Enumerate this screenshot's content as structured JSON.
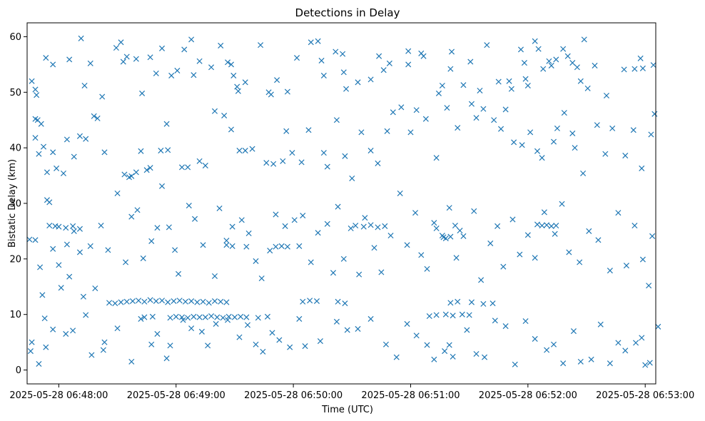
{
  "chart_data": {
    "type": "scatter",
    "title": "Detections in Delay",
    "xlabel": "Time (UTC)",
    "ylabel": "Bistatic Delay (km)",
    "xlim": [
      -0.27,
      5.09
    ],
    "ylim": [
      -2.5,
      62.5
    ],
    "marker": "x",
    "color": "#1f77b4",
    "grid": false,
    "x_unit": "minutes after 2025-05-28 06:48:00",
    "xticks": [
      {
        "value": 0,
        "label": "2025-05-28 06:48:00"
      },
      {
        "value": 1,
        "label": "2025-05-28 06:49:00"
      },
      {
        "value": 2,
        "label": "2025-05-28 06:50:00"
      },
      {
        "value": 3,
        "label": "2025-05-28 06:51:00"
      },
      {
        "value": 4,
        "label": "2025-05-28 06:52:00"
      },
      {
        "value": 5,
        "label": "2025-05-28 06:53:00"
      }
    ],
    "yticks": [
      {
        "value": 0,
        "label": "0"
      },
      {
        "value": 10,
        "label": "10"
      },
      {
        "value": 20,
        "label": "20"
      },
      {
        "value": 30,
        "label": "30"
      },
      {
        "value": 40,
        "label": "40"
      },
      {
        "value": 50,
        "label": "50"
      },
      {
        "value": 60,
        "label": "60"
      }
    ],
    "points": [
      [
        -0.23,
        52.0
      ],
      [
        -0.2,
        50.5
      ],
      [
        -0.19,
        49.5
      ],
      [
        -0.2,
        45.2
      ],
      [
        -0.18,
        45.0
      ],
      [
        -0.15,
        44.3
      ],
      [
        -0.11,
        56.2
      ],
      [
        -0.05,
        55.0
      ],
      [
        0.09,
        55.9
      ],
      [
        0.19,
        59.7
      ],
      [
        0.22,
        51.2
      ],
      [
        0.27,
        55.2
      ],
      [
        0.37,
        49.2
      ],
      [
        0.49,
        58.0
      ],
      [
        0.53,
        59.0
      ],
      [
        0.55,
        55.5
      ],
      [
        0.58,
        56.4
      ],
      [
        0.66,
        56.0
      ],
      [
        0.71,
        49.8
      ],
      [
        0.78,
        56.3
      ],
      [
        0.83,
        53.4
      ],
      [
        0.88,
        57.9
      ],
      [
        0.96,
        53.0
      ],
      [
        1.01,
        53.9
      ],
      [
        1.07,
        57.7
      ],
      [
        1.13,
        59.5
      ],
      [
        1.15,
        53.1
      ],
      [
        1.2,
        55.6
      ],
      [
        1.3,
        54.5
      ],
      [
        1.38,
        58.4
      ],
      [
        1.44,
        55.4
      ],
      [
        1.47,
        55.0
      ],
      [
        1.49,
        53.0
      ],
      [
        1.52,
        51.0
      ],
      [
        1.53,
        50.2
      ],
      [
        1.59,
        51.8
      ],
      [
        1.72,
        58.5
      ],
      [
        1.79,
        50.0
      ],
      [
        1.81,
        49.6
      ],
      [
        1.86,
        52.2
      ],
      [
        1.95,
        50.1
      ],
      [
        2.03,
        56.2
      ],
      [
        2.15,
        59.0
      ],
      [
        2.21,
        59.2
      ],
      [
        2.24,
        55.7
      ],
      [
        2.26,
        53.0
      ],
      [
        2.36,
        57.3
      ],
      [
        2.42,
        56.9
      ],
      [
        2.43,
        53.6
      ],
      [
        2.45,
        50.6
      ],
      [
        2.55,
        51.8
      ],
      [
        2.66,
        52.3
      ],
      [
        2.73,
        56.5
      ],
      [
        2.77,
        54.0
      ],
      [
        2.82,
        55.2
      ],
      [
        2.98,
        57.4
      ],
      [
        2.98,
        55.0
      ],
      [
        3.09,
        57.0
      ],
      [
        3.11,
        56.5
      ],
      [
        3.24,
        49.8
      ],
      [
        3.27,
        51.2
      ],
      [
        3.35,
        57.3
      ],
      [
        3.34,
        54.2
      ],
      [
        3.45,
        51.3
      ],
      [
        3.51,
        55.5
      ],
      [
        3.59,
        50.3
      ],
      [
        3.65,
        58.5
      ],
      [
        3.75,
        51.9
      ],
      [
        3.84,
        52.0
      ],
      [
        3.86,
        50.6
      ],
      [
        3.94,
        57.7
      ],
      [
        3.97,
        55.3
      ],
      [
        3.98,
        52.4
      ],
      [
        4.0,
        51.2
      ],
      [
        4.06,
        59.2
      ],
      [
        4.09,
        57.8
      ],
      [
        4.13,
        54.2
      ],
      [
        4.18,
        55.6
      ],
      [
        4.2,
        54.8
      ],
      [
        4.24,
        55.9
      ],
      [
        4.3,
        57.8
      ],
      [
        4.34,
        56.5
      ],
      [
        4.38,
        55.3
      ],
      [
        4.42,
        54.5
      ],
      [
        4.45,
        52.0
      ],
      [
        4.48,
        59.5
      ],
      [
        4.51,
        50.7
      ],
      [
        4.57,
        54.8
      ],
      [
        4.67,
        49.4
      ],
      [
        4.82,
        54.1
      ],
      [
        4.91,
        54.2
      ],
      [
        4.96,
        56.1
      ],
      [
        4.98,
        54.3
      ],
      [
        5.07,
        54.9
      ],
      [
        -0.2,
        41.8
      ],
      [
        -0.17,
        38.9
      ],
      [
        -0.13,
        40.2
      ],
      [
        -0.1,
        35.6
      ],
      [
        -0.1,
        30.6
      ],
      [
        -0.08,
        30.2
      ],
      [
        -0.05,
        39.2
      ],
      [
        -0.02,
        36.3
      ],
      [
        0.04,
        35.4
      ],
      [
        0.07,
        41.5
      ],
      [
        0.13,
        38.4
      ],
      [
        0.18,
        42.1
      ],
      [
        0.23,
        41.6
      ],
      [
        0.3,
        45.7
      ],
      [
        0.33,
        45.3
      ],
      [
        0.39,
        39.2
      ],
      [
        0.56,
        35.2
      ],
      [
        0.6,
        34.7
      ],
      [
        0.62,
        34.9
      ],
      [
        0.66,
        35.6
      ],
      [
        0.7,
        39.4
      ],
      [
        0.75,
        36.0
      ],
      [
        0.78,
        36.4
      ],
      [
        0.87,
        39.5
      ],
      [
        0.92,
        44.3
      ],
      [
        0.93,
        39.6
      ],
      [
        1.05,
        36.5
      ],
      [
        1.1,
        36.5
      ],
      [
        1.2,
        37.6
      ],
      [
        1.25,
        36.8
      ],
      [
        1.33,
        46.6
      ],
      [
        1.41,
        45.8
      ],
      [
        1.47,
        43.3
      ],
      [
        1.54,
        39.5
      ],
      [
        1.59,
        39.5
      ],
      [
        1.65,
        39.8
      ],
      [
        1.77,
        37.3
      ],
      [
        1.83,
        37.1
      ],
      [
        1.91,
        37.6
      ],
      [
        1.94,
        43.0
      ],
      [
        1.99,
        39.1
      ],
      [
        2.07,
        37.4
      ],
      [
        2.13,
        43.2
      ],
      [
        2.26,
        39.1
      ],
      [
        2.29,
        36.6
      ],
      [
        2.37,
        45.0
      ],
      [
        2.44,
        38.5
      ],
      [
        2.5,
        34.5
      ],
      [
        2.58,
        42.8
      ],
      [
        2.66,
        39.5
      ],
      [
        2.72,
        37.2
      ],
      [
        2.8,
        43.0
      ],
      [
        2.85,
        46.4
      ],
      [
        2.92,
        47.3
      ],
      [
        3.0,
        42.8
      ],
      [
        3.05,
        46.8
      ],
      [
        3.13,
        45.2
      ],
      [
        3.22,
        38.2
      ],
      [
        3.31,
        47.2
      ],
      [
        3.4,
        43.6
      ],
      [
        3.52,
        47.9
      ],
      [
        3.56,
        45.4
      ],
      [
        3.62,
        47.0
      ],
      [
        3.71,
        45.0
      ],
      [
        3.77,
        43.4
      ],
      [
        3.81,
        46.9
      ],
      [
        3.88,
        41.0
      ],
      [
        3.95,
        40.5
      ],
      [
        4.02,
        42.8
      ],
      [
        4.08,
        39.4
      ],
      [
        4.12,
        38.2
      ],
      [
        4.22,
        41.1
      ],
      [
        4.25,
        43.5
      ],
      [
        4.31,
        46.3
      ],
      [
        4.38,
        42.6
      ],
      [
        4.4,
        40.0
      ],
      [
        4.47,
        35.4
      ],
      [
        4.59,
        44.1
      ],
      [
        4.66,
        38.9
      ],
      [
        4.72,
        43.5
      ],
      [
        4.83,
        38.6
      ],
      [
        4.9,
        43.2
      ],
      [
        4.97,
        36.3
      ],
      [
        5.05,
        42.4
      ],
      [
        5.08,
        46.1
      ],
      [
        -0.25,
        23.5
      ],
      [
        -0.2,
        23.4
      ],
      [
        -0.16,
        18.5
      ],
      [
        -0.14,
        13.5
      ],
      [
        -0.12,
        9.3
      ],
      [
        -0.08,
        26.0
      ],
      [
        -0.05,
        21.8
      ],
      [
        -0.03,
        25.9
      ],
      [
        0.0,
        18.9
      ],
      [
        0.02,
        14.8
      ],
      [
        0.07,
        22.6
      ],
      [
        0.09,
        16.8
      ],
      [
        0.13,
        25.0
      ],
      [
        0.18,
        21.2
      ],
      [
        0.21,
        13.2
      ],
      [
        0.27,
        22.3
      ],
      [
        0.31,
        14.7
      ],
      [
        0.36,
        26.0
      ],
      [
        0.42,
        21.6
      ],
      [
        0.5,
        31.8
      ],
      [
        0.57,
        19.4
      ],
      [
        0.62,
        27.6
      ],
      [
        0.67,
        28.8
      ],
      [
        0.72,
        20.1
      ],
      [
        0.79,
        23.2
      ],
      [
        0.84,
        25.6
      ],
      [
        0.88,
        33.1
      ],
      [
        0.94,
        25.7
      ],
      [
        0.99,
        21.6
      ],
      [
        1.02,
        17.3
      ],
      [
        1.11,
        29.6
      ],
      [
        1.16,
        27.2
      ],
      [
        1.23,
        22.5
      ],
      [
        1.33,
        16.9
      ],
      [
        1.37,
        29.1
      ],
      [
        1.43,
        23.3
      ],
      [
        1.48,
        25.8
      ],
      [
        1.56,
        27.0
      ],
      [
        1.62,
        24.6
      ],
      [
        1.68,
        19.6
      ],
      [
        1.73,
        16.5
      ],
      [
        1.8,
        21.5
      ],
      [
        1.85,
        28.0
      ],
      [
        1.93,
        25.9
      ],
      [
        2.01,
        27.0
      ],
      [
        2.08,
        27.8
      ],
      [
        2.15,
        19.4
      ],
      [
        2.21,
        24.7
      ],
      [
        2.29,
        26.3
      ],
      [
        2.34,
        17.5
      ],
      [
        2.38,
        29.4
      ],
      [
        2.43,
        20.0
      ],
      [
        2.49,
        25.5
      ],
      [
        2.56,
        17.2
      ],
      [
        2.61,
        27.4
      ],
      [
        2.69,
        22.0
      ],
      [
        2.75,
        17.6
      ],
      [
        2.83,
        24.2
      ],
      [
        2.91,
        31.8
      ],
      [
        2.97,
        22.5
      ],
      [
        3.04,
        28.3
      ],
      [
        3.09,
        20.7
      ],
      [
        3.14,
        18.2
      ],
      [
        3.2,
        26.5
      ],
      [
        3.28,
        23.9
      ],
      [
        3.33,
        29.2
      ],
      [
        3.39,
        20.2
      ],
      [
        3.45,
        24.1
      ],
      [
        3.54,
        28.6
      ],
      [
        3.6,
        16.2
      ],
      [
        3.68,
        22.8
      ],
      [
        3.74,
        25.9
      ],
      [
        3.79,
        18.6
      ],
      [
        3.87,
        27.1
      ],
      [
        3.93,
        20.8
      ],
      [
        4.0,
        24.3
      ],
      [
        4.06,
        20.2
      ],
      [
        4.14,
        28.4
      ],
      [
        4.23,
        24.5
      ],
      [
        4.29,
        29.9
      ],
      [
        4.35,
        21.2
      ],
      [
        4.44,
        19.4
      ],
      [
        4.52,
        25.0
      ],
      [
        4.6,
        23.4
      ],
      [
        4.7,
        17.9
      ],
      [
        4.77,
        28.3
      ],
      [
        4.84,
        18.8
      ],
      [
        4.91,
        26.0
      ],
      [
        4.98,
        19.9
      ],
      [
        5.03,
        15.2
      ],
      [
        5.06,
        24.1
      ],
      [
        -0.23,
        5.0
      ],
      [
        -0.24,
        3.4
      ],
      [
        -0.17,
        1.1
      ],
      [
        -0.11,
        4.1
      ],
      [
        -0.05,
        7.3
      ],
      [
        0.06,
        6.5
      ],
      [
        0.12,
        7.1
      ],
      [
        0.23,
        9.9
      ],
      [
        0.28,
        2.7
      ],
      [
        0.38,
        3.6
      ],
      [
        0.39,
        5.0
      ],
      [
        0.5,
        7.5
      ],
      [
        0.62,
        1.5
      ],
      [
        0.7,
        9.2
      ],
      [
        0.79,
        4.6
      ],
      [
        0.84,
        6.5
      ],
      [
        0.92,
        2.1
      ],
      [
        0.95,
        4.4
      ],
      [
        1.06,
        9.0
      ],
      [
        1.13,
        7.5
      ],
      [
        1.22,
        6.9
      ],
      [
        1.27,
        4.4
      ],
      [
        1.34,
        8.3
      ],
      [
        1.44,
        9.0
      ],
      [
        1.54,
        5.9
      ],
      [
        1.61,
        8.1
      ],
      [
        1.68,
        4.6
      ],
      [
        1.74,
        3.3
      ],
      [
        1.82,
        6.7
      ],
      [
        1.88,
        5.4
      ],
      [
        1.97,
        4.1
      ],
      [
        2.05,
        9.2
      ],
      [
        2.1,
        4.3
      ],
      [
        2.23,
        5.2
      ],
      [
        2.37,
        8.7
      ],
      [
        2.46,
        7.2
      ],
      [
        2.55,
        7.4
      ],
      [
        2.66,
        9.2
      ],
      [
        2.79,
        4.6
      ],
      [
        2.88,
        2.3
      ],
      [
        2.97,
        8.3
      ],
      [
        3.05,
        6.2
      ],
      [
        3.14,
        4.5
      ],
      [
        3.2,
        1.9
      ],
      [
        3.29,
        3.4
      ],
      [
        3.33,
        4.5
      ],
      [
        3.36,
        2.4
      ],
      [
        3.48,
        7.2
      ],
      [
        3.56,
        2.9
      ],
      [
        3.63,
        2.3
      ],
      [
        3.72,
        8.9
      ],
      [
        3.81,
        7.9
      ],
      [
        3.89,
        1.0
      ],
      [
        3.98,
        8.8
      ],
      [
        4.06,
        5.6
      ],
      [
        4.16,
        3.6
      ],
      [
        4.22,
        4.6
      ],
      [
        4.3,
        1.2
      ],
      [
        4.39,
        7.0
      ],
      [
        4.45,
        1.5
      ],
      [
        4.54,
        1.9
      ],
      [
        4.62,
        8.2
      ],
      [
        4.7,
        1.2
      ],
      [
        4.77,
        4.9
      ],
      [
        4.83,
        3.5
      ],
      [
        4.92,
        4.9
      ],
      [
        4.97,
        5.8
      ],
      [
        5.0,
        0.9
      ],
      [
        5.04,
        1.3
      ],
      [
        5.11,
        7.8
      ],
      [
        0.43,
        12.1
      ],
      [
        0.48,
        12.0
      ],
      [
        0.53,
        12.2
      ],
      [
        0.58,
        12.3
      ],
      [
        0.63,
        12.4
      ],
      [
        0.68,
        12.5
      ],
      [
        0.73,
        12.3
      ],
      [
        0.78,
        12.6
      ],
      [
        0.83,
        12.4
      ],
      [
        0.88,
        12.5
      ],
      [
        0.93,
        12.2
      ],
      [
        0.98,
        12.4
      ],
      [
        1.03,
        12.5
      ],
      [
        1.08,
        12.3
      ],
      [
        1.13,
        12.4
      ],
      [
        1.18,
        12.2
      ],
      [
        1.23,
        12.3
      ],
      [
        1.28,
        12.1
      ],
      [
        1.33,
        12.4
      ],
      [
        1.38,
        12.3
      ],
      [
        1.43,
        12.2
      ],
      [
        0.73,
        9.5
      ],
      [
        0.8,
        9.6
      ],
      [
        0.95,
        9.4
      ],
      [
        1.0,
        9.6
      ],
      [
        1.05,
        9.5
      ],
      [
        1.1,
        9.4
      ],
      [
        1.15,
        9.6
      ],
      [
        1.2,
        9.5
      ],
      [
        1.25,
        9.5
      ],
      [
        1.3,
        9.7
      ],
      [
        1.35,
        9.5
      ],
      [
        1.4,
        9.4
      ],
      [
        1.45,
        9.6
      ],
      [
        1.5,
        9.5
      ],
      [
        1.55,
        9.6
      ],
      [
        1.6,
        9.5
      ],
      [
        1.7,
        9.4
      ],
      [
        1.78,
        9.6
      ],
      [
        1.43,
        22.5
      ],
      [
        1.48,
        22.3
      ],
      [
        1.6,
        22.2
      ],
      [
        1.85,
        22.2
      ],
      [
        1.9,
        22.3
      ],
      [
        1.95,
        22.2
      ],
      [
        2.05,
        22.3
      ],
      [
        2.53,
        26.0
      ],
      [
        2.6,
        25.8
      ],
      [
        2.66,
        26.1
      ],
      [
        2.72,
        25.7
      ],
      [
        2.78,
        25.9
      ],
      [
        3.22,
        25.5
      ],
      [
        3.27,
        24.2
      ],
      [
        3.3,
        23.7
      ],
      [
        3.34,
        24.0
      ],
      [
        3.38,
        26.0
      ],
      [
        3.42,
        25.1
      ],
      [
        4.08,
        26.2
      ],
      [
        4.12,
        26.0
      ],
      [
        4.16,
        26.1
      ],
      [
        4.2,
        25.9
      ],
      [
        4.24,
        26.0
      ],
      [
        0.0,
        25.8
      ],
      [
        0.06,
        25.6
      ],
      [
        0.12,
        25.9
      ],
      [
        0.18,
        25.4
      ],
      [
        2.08,
        12.3
      ],
      [
        2.14,
        12.5
      ],
      [
        2.2,
        12.4
      ],
      [
        2.38,
        12.3
      ],
      [
        2.44,
        12.0
      ],
      [
        3.34,
        12.1
      ],
      [
        3.4,
        12.3
      ],
      [
        3.52,
        12.2
      ],
      [
        3.62,
        11.9
      ],
      [
        3.7,
        12.0
      ],
      [
        3.16,
        9.7
      ],
      [
        3.22,
        9.9
      ],
      [
        3.3,
        10.0
      ],
      [
        3.36,
        9.8
      ],
      [
        3.44,
        10.0
      ],
      [
        3.5,
        9.9
      ]
    ]
  }
}
